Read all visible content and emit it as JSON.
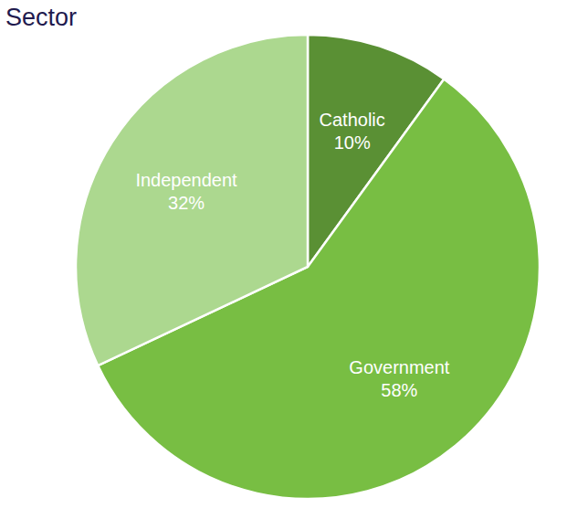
{
  "chart_data": {
    "type": "pie",
    "title": "Sector",
    "categories": [
      "Catholic",
      "Government",
      "Independent"
    ],
    "values": [
      10,
      58,
      32
    ],
    "value_labels": [
      "10%",
      "58%",
      "32%"
    ],
    "colors": [
      "#5a9034",
      "#78be43",
      "#acd88f"
    ],
    "data_labels": true
  }
}
